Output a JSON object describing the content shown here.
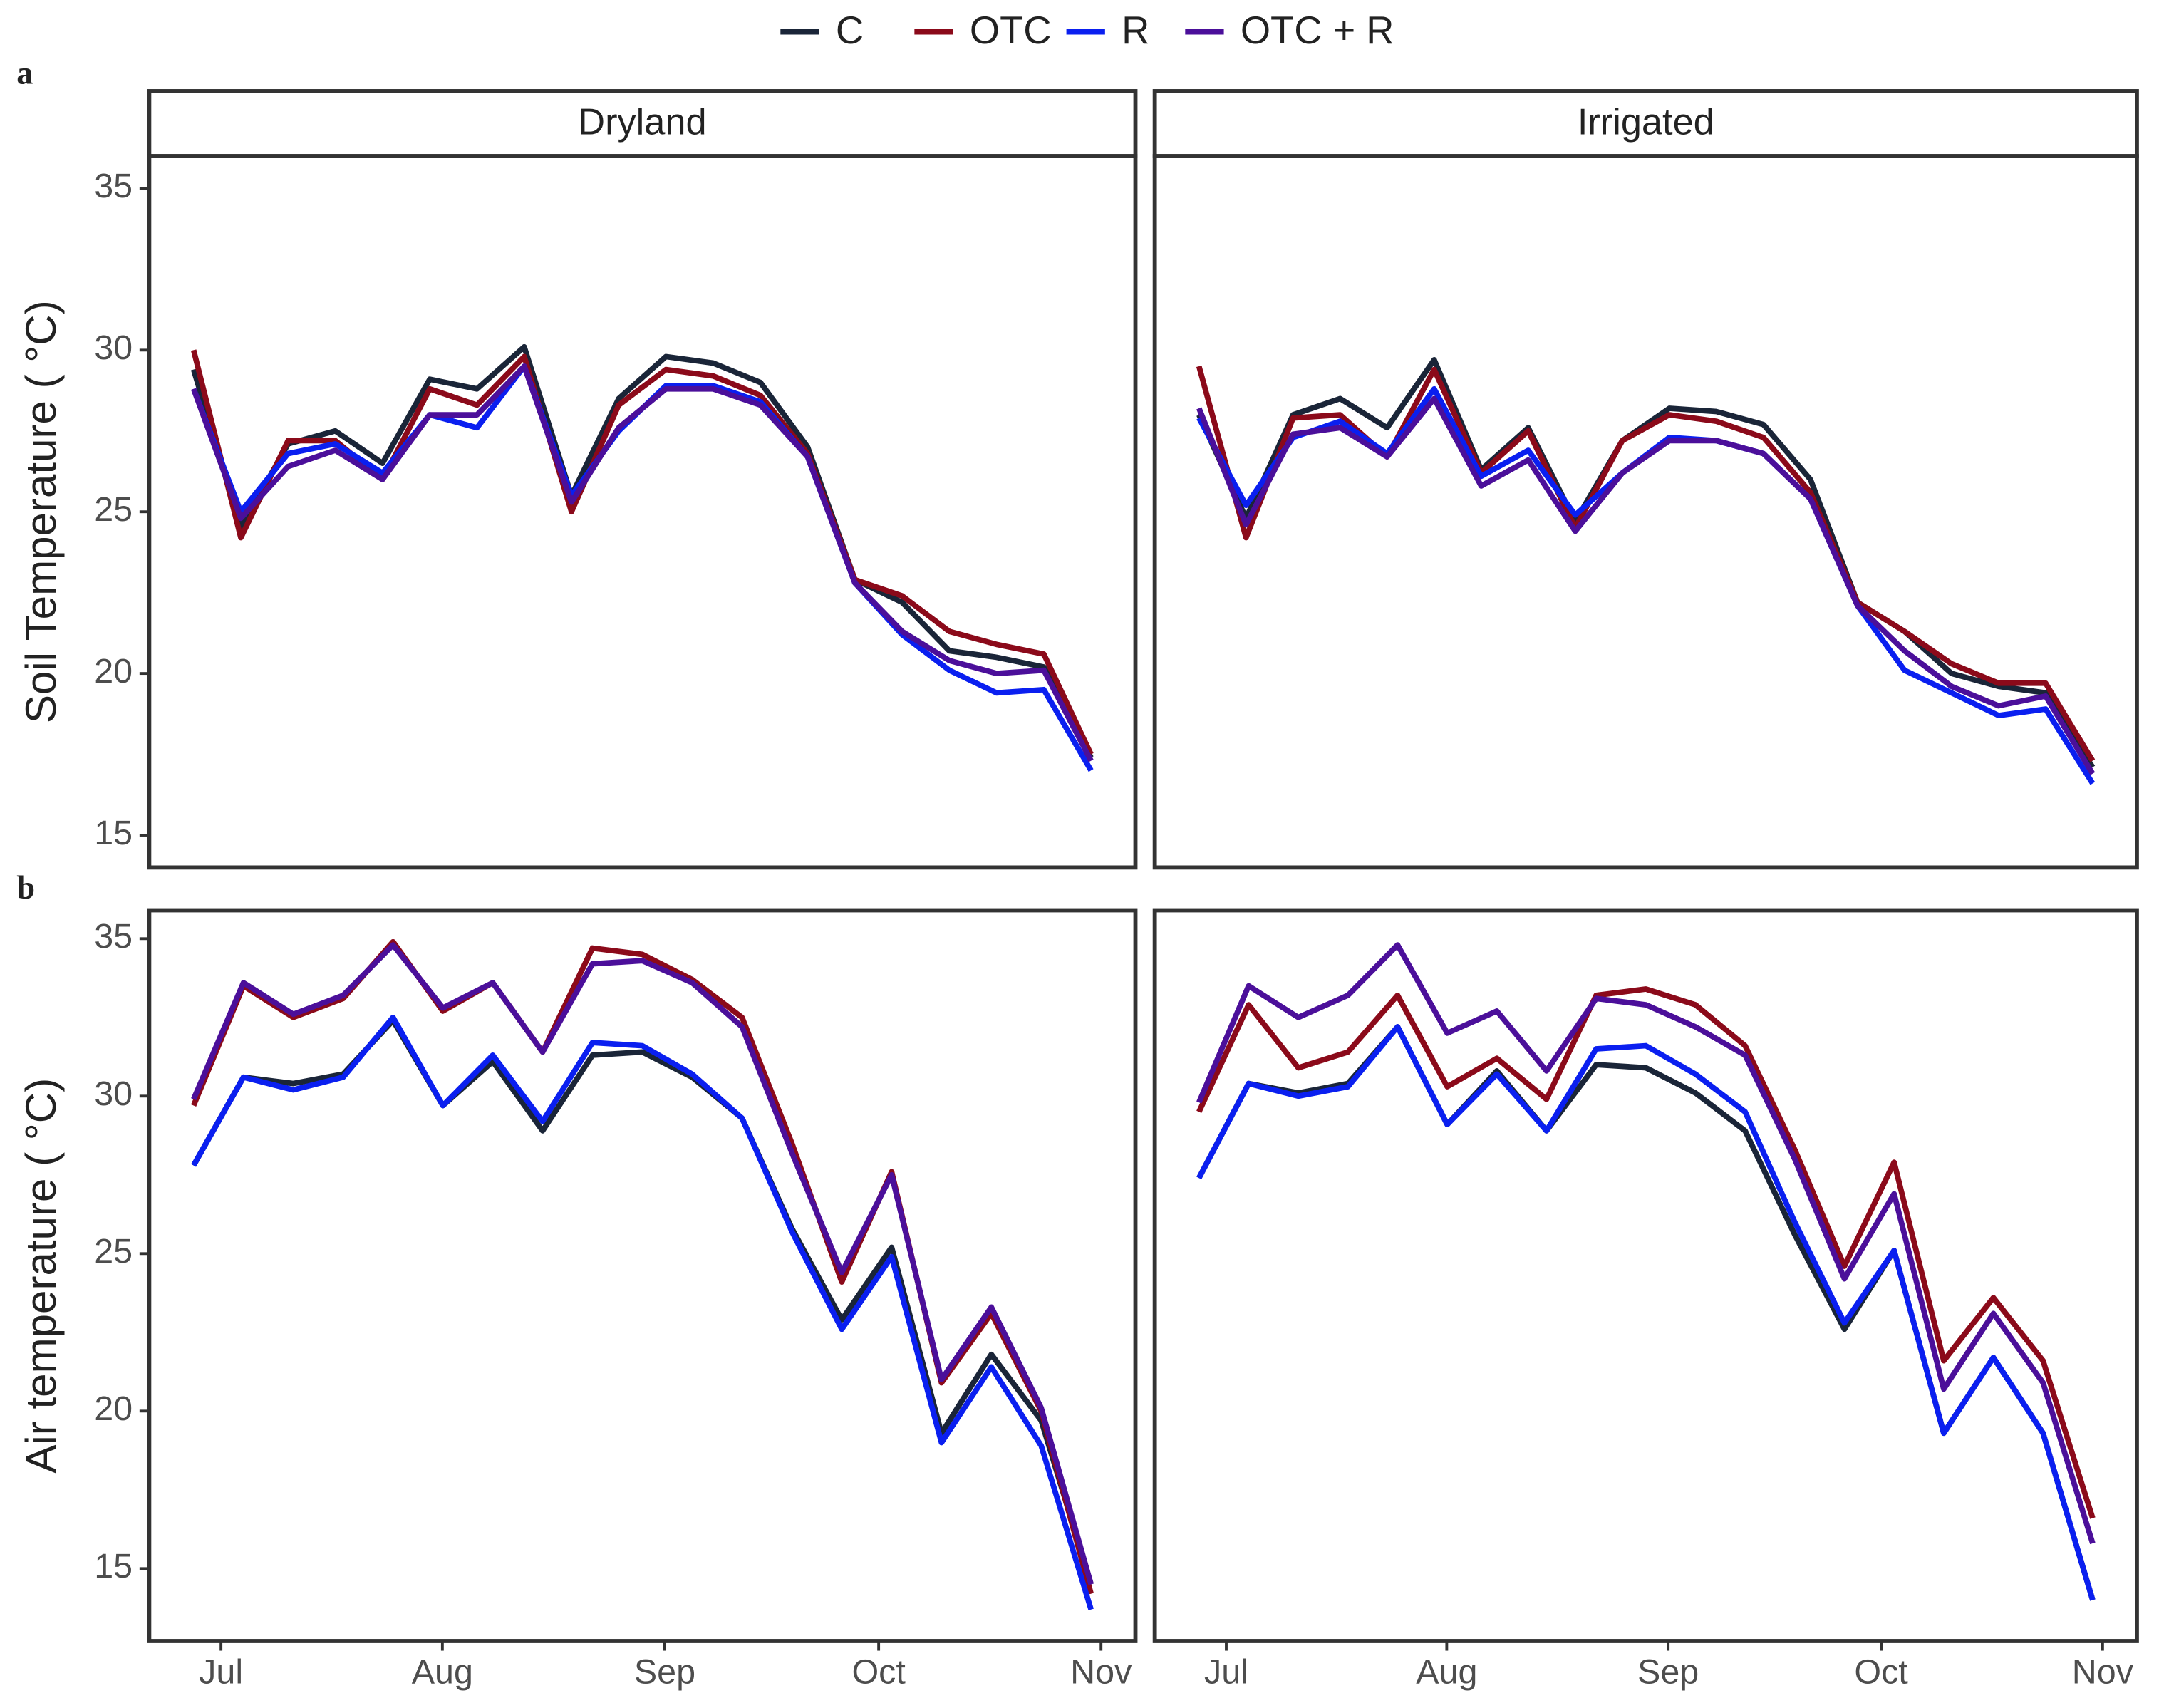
{
  "chart_data": [
    {
      "type": "line",
      "panel_label": "a",
      "title": "Dryland",
      "ylabel": "Soil Temperature ( °C)",
      "x": [
        0,
        1,
        2,
        3,
        4,
        5,
        6,
        7,
        8,
        9,
        10,
        11,
        12,
        13,
        14,
        15,
        16,
        17,
        18,
        19
      ],
      "xlim": [
        -0.94,
        19.94
      ],
      "ylim": [
        14.0,
        36.0
      ],
      "yticks": [
        15,
        20,
        25,
        30,
        35
      ],
      "series": [
        {
          "name": "C",
          "color": "#1a2538",
          "values": [
            29.4,
            24.5,
            27.1,
            27.5,
            26.5,
            29.1,
            28.8,
            30.1,
            25.5,
            28.5,
            29.8,
            29.6,
            29.0,
            27.0,
            22.9,
            22.2,
            20.7,
            20.5,
            20.2,
            17.4
          ]
        },
        {
          "name": "OTC",
          "color": "#8b0a1a",
          "values": [
            30.0,
            24.2,
            27.2,
            27.2,
            26.0,
            28.8,
            28.3,
            29.8,
            25.0,
            28.3,
            29.4,
            29.2,
            28.6,
            26.8,
            22.9,
            22.4,
            21.3,
            20.9,
            20.6,
            17.5
          ]
        },
        {
          "name": "R",
          "color": "#0a1ff0",
          "values": [
            28.8,
            25.0,
            26.8,
            27.1,
            26.2,
            28.0,
            27.6,
            29.5,
            25.5,
            27.5,
            28.9,
            28.9,
            28.4,
            26.7,
            22.8,
            21.2,
            20.1,
            19.4,
            19.5,
            17.0
          ]
        },
        {
          "name": "OTC + R",
          "color": "#4b0f9a",
          "values": [
            28.8,
            24.8,
            26.4,
            26.9,
            26.0,
            28.0,
            28.0,
            29.5,
            25.3,
            27.6,
            28.8,
            28.8,
            28.3,
            26.7,
            22.8,
            21.3,
            20.4,
            20.0,
            20.1,
            17.3
          ]
        }
      ]
    },
    {
      "type": "line",
      "title": "Irrigated",
      "x": [
        0,
        1,
        2,
        3,
        4,
        5,
        6,
        7,
        8,
        9,
        10,
        11,
        12,
        13,
        14,
        15,
        16,
        17,
        18,
        19
      ],
      "xlim": [
        -0.94,
        19.94
      ],
      "ylim": [
        14.0,
        36.0
      ],
      "series": [
        {
          "name": "C",
          "color": "#1a2538",
          "values": [
            28.0,
            24.8,
            28.0,
            28.5,
            27.6,
            29.7,
            26.3,
            27.6,
            24.7,
            27.2,
            28.2,
            28.1,
            27.7,
            26.0,
            22.2,
            21.3,
            20.0,
            19.6,
            19.4,
            17.1
          ]
        },
        {
          "name": "OTC",
          "color": "#8b0a1a",
          "values": [
            29.5,
            24.2,
            27.9,
            28.0,
            26.7,
            29.4,
            26.2,
            27.5,
            24.5,
            27.2,
            28.0,
            27.8,
            27.3,
            25.6,
            22.2,
            21.3,
            20.3,
            19.7,
            19.7,
            17.3
          ]
        },
        {
          "name": "R",
          "color": "#0a1ff0",
          "values": [
            27.9,
            25.2,
            27.3,
            27.8,
            26.8,
            28.8,
            26.1,
            26.9,
            24.9,
            26.2,
            27.3,
            27.2,
            26.8,
            25.4,
            22.1,
            20.1,
            19.4,
            18.7,
            18.9,
            16.6
          ]
        },
        {
          "name": "OTC + R",
          "color": "#4b0f9a",
          "values": [
            28.2,
            24.6,
            27.4,
            27.6,
            26.7,
            28.5,
            25.8,
            26.6,
            24.4,
            26.2,
            27.2,
            27.2,
            26.8,
            25.4,
            22.1,
            20.7,
            19.6,
            19.0,
            19.3,
            16.9
          ]
        }
      ]
    },
    {
      "type": "line",
      "panel_label": "b",
      "ylabel": "Air temperature ( °C)",
      "x": [
        0,
        1,
        2,
        3,
        4,
        5,
        6,
        7,
        8,
        9,
        10,
        11,
        12,
        13,
        14,
        15,
        16,
        17,
        18
      ],
      "xlim": [
        -0.89,
        18.89
      ],
      "ylim": [
        12.7,
        35.9
      ],
      "yticks": [
        15,
        20,
        25,
        30,
        35
      ],
      "xticks": [
        {
          "value": 0.55,
          "label": "Jul"
        },
        {
          "value": 4.99,
          "label": "Aug"
        },
        {
          "value": 9.45,
          "label": "Sep"
        },
        {
          "value": 13.74,
          "label": "Oct"
        },
        {
          "value": 18.2,
          "label": "Nov"
        }
      ],
      "series": [
        {
          "name": "C",
          "color": "#1a2538",
          "values": [
            27.8,
            30.6,
            30.4,
            30.7,
            32.4,
            29.7,
            31.1,
            28.9,
            31.3,
            31.4,
            30.6,
            29.3,
            25.8,
            22.9,
            25.2,
            19.3,
            21.8,
            19.7,
            14.5
          ]
        },
        {
          "name": "OTC",
          "color": "#8b0a1a",
          "values": [
            29.7,
            33.5,
            32.5,
            33.1,
            34.9,
            32.7,
            33.6,
            31.4,
            34.7,
            34.5,
            33.7,
            32.5,
            28.5,
            24.1,
            27.6,
            20.9,
            23.1,
            20.0,
            14.2
          ]
        },
        {
          "name": "R",
          "color": "#0a1ff0",
          "values": [
            27.8,
            30.6,
            30.2,
            30.6,
            32.5,
            29.7,
            31.3,
            29.2,
            31.7,
            31.6,
            30.7,
            29.3,
            25.7,
            22.6,
            24.9,
            19.0,
            21.4,
            18.9,
            13.7
          ]
        },
        {
          "name": "OTC + R",
          "color": "#4b0f9a",
          "values": [
            29.9,
            33.6,
            32.6,
            33.2,
            34.8,
            32.8,
            33.6,
            31.4,
            34.2,
            34.3,
            33.6,
            32.2,
            28.2,
            24.4,
            27.5,
            21.0,
            23.3,
            20.1,
            14.5
          ]
        }
      ]
    },
    {
      "type": "line",
      "x": [
        0,
        1,
        2,
        3,
        4,
        5,
        6,
        7,
        8,
        9,
        10,
        11,
        12,
        13,
        14,
        15,
        16,
        17,
        18
      ],
      "xlim": [
        -0.89,
        18.89
      ],
      "ylim": [
        12.7,
        35.9
      ],
      "xticks": [
        {
          "value": 0.55,
          "label": "Jul"
        },
        {
          "value": 4.99,
          "label": "Aug"
        },
        {
          "value": 9.45,
          "label": "Sep"
        },
        {
          "value": 13.74,
          "label": "Oct"
        },
        {
          "value": 18.2,
          "label": "Nov"
        }
      ],
      "series": [
        {
          "name": "C",
          "color": "#1a2538",
          "values": [
            27.4,
            30.4,
            30.1,
            30.4,
            32.2,
            29.1,
            30.8,
            28.9,
            31.0,
            30.9,
            30.1,
            28.9,
            25.6,
            22.6,
            25.1,
            19.3,
            21.7,
            19.3,
            14.0
          ]
        },
        {
          "name": "OTC",
          "color": "#8b0a1a",
          "values": [
            29.5,
            32.9,
            30.9,
            31.4,
            33.2,
            30.3,
            31.2,
            29.9,
            33.2,
            33.4,
            32.9,
            31.6,
            28.3,
            24.6,
            27.9,
            21.6,
            23.6,
            21.6,
            16.6
          ]
        },
        {
          "name": "R",
          "color": "#0a1ff0",
          "values": [
            27.4,
            30.4,
            30.0,
            30.3,
            32.2,
            29.1,
            30.7,
            28.9,
            31.5,
            31.6,
            30.7,
            29.5,
            26.0,
            22.8,
            25.1,
            19.3,
            21.7,
            19.3,
            14.0
          ]
        },
        {
          "name": "OTC + R",
          "color": "#4b0f9a",
          "values": [
            29.8,
            33.5,
            32.5,
            33.2,
            34.8,
            32.0,
            32.7,
            30.8,
            33.1,
            32.9,
            32.2,
            31.3,
            28.0,
            24.2,
            26.9,
            20.7,
            23.1,
            20.9,
            15.8
          ]
        }
      ]
    }
  ]
}
